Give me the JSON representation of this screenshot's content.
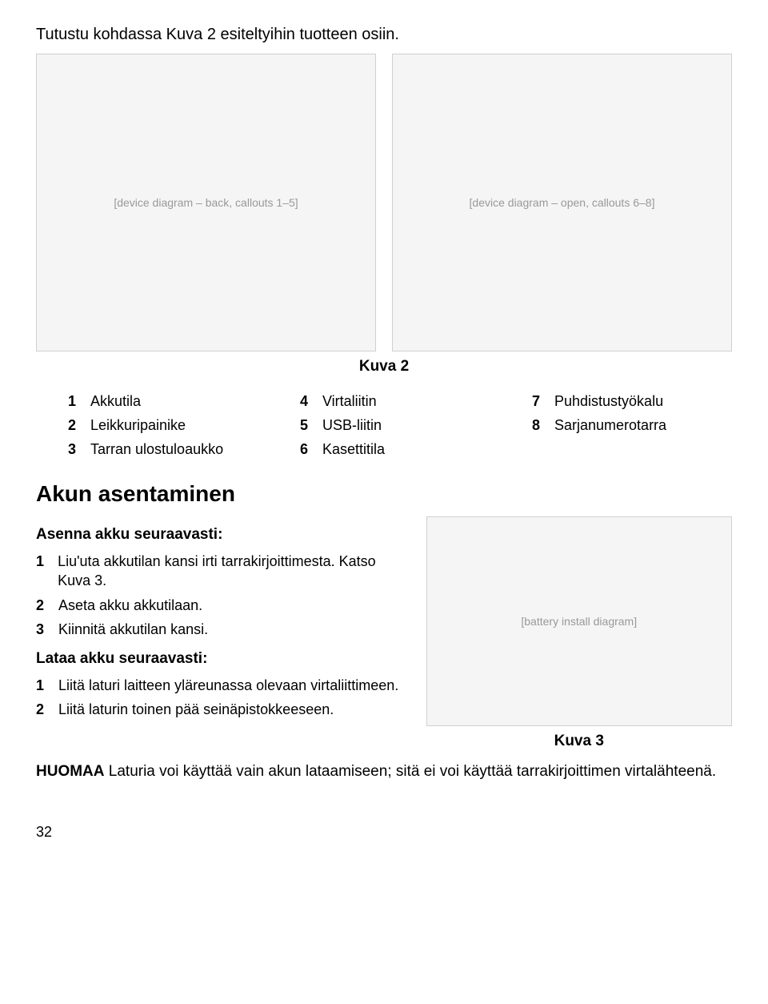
{
  "intro": "Tutustu kohdassa Kuva 2 esiteltyihin tuotteen osiin.",
  "fig2": {
    "left_placeholder": "[device diagram – back, callouts 1–5]",
    "right_placeholder": "[device diagram – open, callouts 6–8]",
    "caption": "Kuva 2"
  },
  "legend": {
    "col1": [
      {
        "n": "1",
        "t": "Akkutila"
      },
      {
        "n": "2",
        "t": "Leikkuripainike"
      },
      {
        "n": "3",
        "t": "Tarran ulostuloaukko"
      }
    ],
    "col2": [
      {
        "n": "4",
        "t": "Virtaliitin"
      },
      {
        "n": "5",
        "t": "USB-liitin"
      },
      {
        "n": "6",
        "t": "Kasettitila"
      }
    ],
    "col3": [
      {
        "n": "7",
        "t": "Puhdistustyökalu"
      },
      {
        "n": "8",
        "t": "Sarjanumerotarra"
      }
    ]
  },
  "section_title": "Akun asentaminen",
  "sub1": "Asenna akku seuraavasti:",
  "steps1": [
    {
      "n": "1",
      "t": "Liu'uta akkutilan kansi irti tarrakirjoittimesta. Katso Kuva 3."
    },
    {
      "n": "2",
      "t": "Aseta akku akkutilaan."
    },
    {
      "n": "3",
      "t": "Kiinnitä akkutilan kansi."
    }
  ],
  "sub2": "Lataa akku seuraavasti:",
  "steps2": [
    {
      "n": "1",
      "t": "Liitä laturi laitteen yläreunassa olevaan virtaliittimeen."
    },
    {
      "n": "2",
      "t": "Liitä laturin toinen pää seinäpistokkeeseen."
    }
  ],
  "fig3": {
    "placeholder": "[battery install diagram]",
    "caption": "Kuva 3"
  },
  "note": {
    "label": "HUOMAA",
    "text": " Laturia voi käyttää vain akun lataamiseen; sitä ei voi käyttää tarrakirjoittimen virtalähteenä."
  },
  "page_number": "32"
}
